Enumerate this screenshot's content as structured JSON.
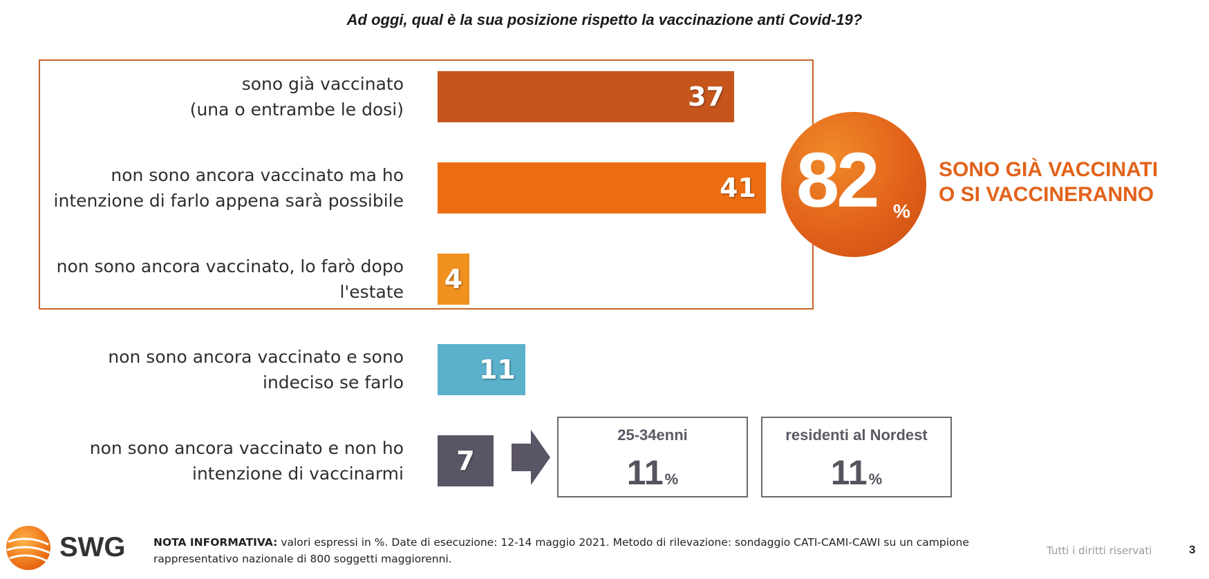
{
  "title": "Ad oggi, qual è la sua posizione rispetto la vaccinazione anti Covid-19?",
  "chart_data": {
    "type": "bar",
    "orientation": "horizontal",
    "title": "Ad oggi, qual è la sua posizione rispetto la vaccinazione anti Covid-19?",
    "unit": "%",
    "categories": [
      [
        "sono già vaccinato",
        "(una o entrambe le dosi)"
      ],
      [
        "non sono ancora vaccinato ma ho",
        "intenzione di farlo appena sarà possibile"
      ],
      [
        "non sono ancora vaccinato, lo farò dopo",
        "l'estate"
      ],
      [
        "non sono ancora vaccinato e sono",
        "indeciso se farlo"
      ],
      [
        "non sono ancora vaccinato e non ho",
        "intenzione di vaccinarmi"
      ]
    ],
    "values": [
      37,
      41,
      4,
      11,
      7
    ],
    "colors": [
      "#c5551b",
      "#ed6e12",
      "#f0901e",
      "#5bb0cb",
      "#5a5564"
    ],
    "value_max": 41
  },
  "summary": {
    "value": "82",
    "unit": "%",
    "line1": "SONO GIÀ VACCINATI",
    "line2": "O SI VACCINERANNO"
  },
  "subgroups": [
    {
      "title": "25-34enni",
      "value": "11",
      "unit": "%"
    },
    {
      "title": "residenti al Nordest",
      "value": "11",
      "unit": "%"
    }
  ],
  "footer": {
    "logo_text": "SWG",
    "note_label": "NOTA INFORMATIVA:",
    "note_text": "valori espressi in %. Date di esecuzione: 12-14 maggio 2021. Metodo di rilevazione: sondaggio CATI-CAMI-CAWI su un campione rappresentativo nazionale di 800 soggetti maggiorenni.",
    "rights": "Tutti i diritti riservati",
    "page": "3"
  },
  "icons": {
    "arrow": "right-arrow-icon",
    "logo": "swg-globe-icon"
  }
}
